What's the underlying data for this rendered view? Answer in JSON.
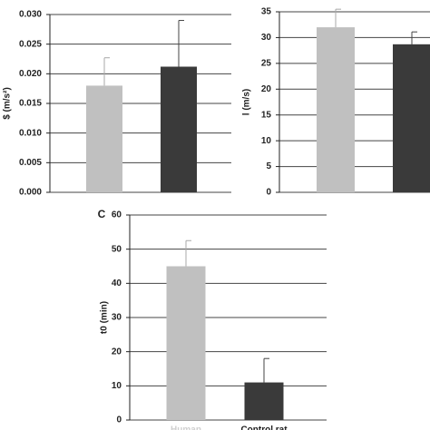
{
  "chart_data": [
    {
      "type": "bar",
      "ylabel": "$ (m/s²)",
      "values": [
        0.018,
        0.0212
      ],
      "errors": [
        0.0047,
        0.0078
      ],
      "colors": [
        "#c0c0c0",
        "#3a3a3a"
      ],
      "ylim": [
        0,
        0.03
      ],
      "yticks": [
        {
          "value": 0,
          "label": "0.000"
        },
        {
          "value": 0.005,
          "label": "0.005"
        },
        {
          "value": 0.01,
          "label": "0.010"
        },
        {
          "value": 0.015,
          "label": "0.015"
        },
        {
          "value": 0.02,
          "label": "0.020"
        },
        {
          "value": 0.025,
          "label": "0.025"
        },
        {
          "value": 0.03,
          "label": "0.030"
        }
      ],
      "grid": true
    },
    {
      "type": "bar",
      "ylabel": "l (m/s)",
      "values": [
        32,
        28.7
      ],
      "errors": [
        3.5,
        2.4
      ],
      "colors": [
        "#c0c0c0",
        "#3a3a3a"
      ],
      "ylim": [
        0,
        35
      ],
      "yticks": [
        0,
        5,
        10,
        15,
        20,
        25,
        30,
        35
      ],
      "grid": true
    },
    {
      "type": "bar",
      "panel_label": "C",
      "ylabel": "t0 (min)",
      "categories": [
        "Human",
        "Control rat"
      ],
      "values": [
        45,
        11
      ],
      "errors": [
        7.5,
        7
      ],
      "colors": [
        "#c0c0c0",
        "#3a3a3a"
      ],
      "ylim": [
        0,
        60
      ],
      "yticks": [
        0,
        10,
        20,
        30,
        40,
        50,
        60
      ],
      "grid": true
    }
  ]
}
